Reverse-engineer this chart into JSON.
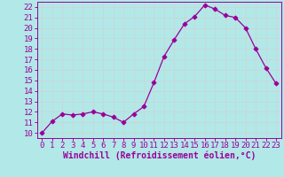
{
  "x": [
    0,
    1,
    2,
    3,
    4,
    5,
    6,
    7,
    8,
    9,
    10,
    11,
    12,
    13,
    14,
    15,
    16,
    17,
    18,
    19,
    20,
    21,
    22,
    23
  ],
  "y": [
    10.0,
    11.1,
    11.8,
    11.7,
    11.8,
    12.0,
    11.8,
    11.5,
    11.0,
    11.8,
    12.5,
    14.8,
    17.3,
    18.9,
    20.4,
    21.1,
    22.2,
    21.8,
    21.2,
    21.0,
    20.0,
    18.0,
    16.2,
    14.7
  ],
  "line_color": "#990099",
  "marker": "D",
  "marker_size": 2.5,
  "xlabel": "Windchill (Refroidissement éolien,°C)",
  "xlabel_fontsize": 7,
  "bg_color": "#b2e8e8",
  "grid_color": "#c8d8d8",
  "yticks": [
    10,
    11,
    12,
    13,
    14,
    15,
    16,
    17,
    18,
    19,
    20,
    21,
    22
  ],
  "xticks": [
    0,
    1,
    2,
    3,
    4,
    5,
    6,
    7,
    8,
    9,
    10,
    11,
    12,
    13,
    14,
    15,
    16,
    17,
    18,
    19,
    20,
    21,
    22,
    23
  ],
  "ylim": [
    9.5,
    22.5
  ],
  "xlim": [
    -0.5,
    23.5
  ],
  "tick_fontsize": 6.5
}
